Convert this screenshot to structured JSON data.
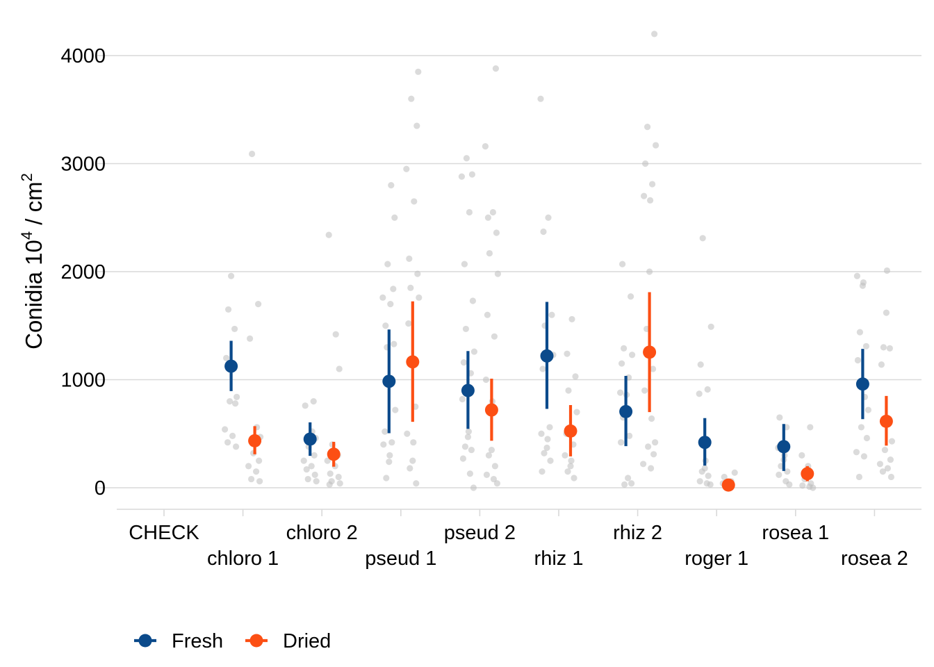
{
  "chart_data": {
    "type": "scatter",
    "title": "",
    "ylabel": {
      "main": "Conidia 10",
      "sup1": "4",
      "mid": " / cm",
      "sup2": "2"
    },
    "xlabel": "",
    "ylim": [
      -200,
      4300
    ],
    "yticks": [
      0,
      1000,
      2000,
      3000,
      4000
    ],
    "ytick_labels": [
      "0",
      "1000",
      "2000",
      "3000",
      "4000"
    ],
    "grid": true,
    "legend_position": "bottom-left",
    "categories": [
      "CHECK",
      "chloro 1",
      "chloro 2",
      "pseud 1",
      "pseud 2",
      "rhiz 1",
      "rhiz 2",
      "roger 1",
      "rosea 1",
      "rosea 2"
    ],
    "series": [
      {
        "name": "Fresh",
        "color": "#0b4a8b",
        "mean": [
          null,
          1125,
          450,
          985,
          900,
          1220,
          705,
          420,
          380,
          960
        ],
        "lower": [
          null,
          895,
          295,
          505,
          545,
          730,
          385,
          205,
          155,
          635
        ],
        "upper": [
          null,
          1360,
          605,
          1465,
          1265,
          1720,
          1035,
          645,
          590,
          1285
        ]
      },
      {
        "name": "Dried",
        "color": "#fc4f14",
        "mean": [
          null,
          435,
          310,
          1165,
          720,
          525,
          1255,
          25,
          130,
          615
        ],
        "lower": [
          null,
          310,
          195,
          610,
          435,
          290,
          700,
          10,
          60,
          390
        ],
        "upper": [
          null,
          570,
          425,
          1725,
          1010,
          765,
          1810,
          45,
          200,
          850
        ]
      }
    ],
    "raw_points": {
      "color": "#bdbdbd",
      "groups": [
        {
          "category": "chloro 1",
          "series": "Fresh",
          "values": [
            1960,
            1650,
            1470,
            1200,
            1130,
            840,
            800,
            780,
            540,
            480,
            420,
            380
          ]
        },
        {
          "category": "chloro 1",
          "series": "Dried",
          "values": [
            3090,
            1700,
            1380,
            560,
            470,
            320,
            250,
            200,
            150,
            80,
            60
          ]
        },
        {
          "category": "chloro 2",
          "series": "Fresh",
          "values": [
            800,
            760,
            520,
            460,
            380,
            300,
            250,
            200,
            170,
            120,
            80,
            60
          ]
        },
        {
          "category": "chloro 2",
          "series": "Dried",
          "values": [
            2340,
            1420,
            1100,
            400,
            300,
            250,
            200,
            130,
            100,
            60,
            40,
            30
          ]
        },
        {
          "category": "pseud 1",
          "series": "Fresh",
          "values": [
            2800,
            2500,
            2070,
            1840,
            1760,
            1700,
            1500,
            1330,
            1300,
            720,
            520,
            420,
            400,
            300,
            240,
            90
          ]
        },
        {
          "category": "pseud 1",
          "series": "Dried",
          "values": [
            3850,
            3600,
            3350,
            2950,
            2650,
            2120,
            1980,
            1850,
            1760,
            1520,
            750,
            500,
            420,
            250,
            180,
            40
          ]
        },
        {
          "category": "pseud 2",
          "series": "Fresh",
          "values": [
            3050,
            2900,
            2880,
            2550,
            2070,
            1730,
            1470,
            1260,
            1160,
            1060,
            820,
            520,
            470,
            380,
            350,
            270,
            130,
            0
          ]
        },
        {
          "category": "pseud 2",
          "series": "Dried",
          "values": [
            3880,
            3160,
            2550,
            2500,
            2360,
            2170,
            1980,
            1600,
            1400,
            1000,
            800,
            350,
            300,
            200,
            120,
            80,
            40
          ]
        },
        {
          "category": "rhiz 1",
          "series": "Fresh",
          "values": [
            3600,
            2500,
            2370,
            1600,
            1500,
            1230,
            1100,
            560,
            500,
            450,
            370,
            320,
            250,
            150
          ]
        },
        {
          "category": "rhiz 1",
          "series": "Dried",
          "values": [
            1560,
            1240,
            1030,
            900,
            700,
            500,
            400,
            300,
            250,
            200,
            150,
            90
          ]
        },
        {
          "category": "rhiz 2",
          "series": "Fresh",
          "values": [
            2070,
            1770,
            1290,
            1230,
            1150,
            1020,
            880,
            860,
            730,
            650,
            480,
            420,
            90,
            40,
            30
          ]
        },
        {
          "category": "rhiz 2",
          "series": "Dried",
          "values": [
            4200,
            3340,
            3170,
            3000,
            2810,
            2700,
            2660,
            2000,
            1470,
            1100,
            900,
            640,
            420,
            380,
            310,
            220,
            180
          ]
        },
        {
          "category": "roger 1",
          "series": "Fresh",
          "values": [
            2310,
            1490,
            1140,
            910,
            870,
            250,
            180,
            150,
            110,
            60,
            40,
            30
          ]
        },
        {
          "category": "roger 1",
          "series": "Dried",
          "values": [
            140,
            100,
            60,
            40,
            20,
            10
          ]
        },
        {
          "category": "rosea 1",
          "series": "Fresh",
          "values": [
            650,
            560,
            370,
            300,
            260,
            200,
            150,
            120,
            60,
            30
          ]
        },
        {
          "category": "rosea 1",
          "series": "Dried",
          "values": [
            560,
            300,
            200,
            120,
            80,
            40,
            20,
            10,
            0
          ]
        },
        {
          "category": "rosea 2",
          "series": "Fresh",
          "values": [
            1960,
            1900,
            1870,
            1440,
            1310,
            1180,
            840,
            720,
            560,
            460,
            330,
            290,
            100
          ]
        },
        {
          "category": "rosea 2",
          "series": "Dried",
          "values": [
            2010,
            1620,
            1300,
            1290,
            1140,
            630,
            430,
            350,
            260,
            220,
            180,
            150,
            100
          ]
        }
      ]
    }
  }
}
